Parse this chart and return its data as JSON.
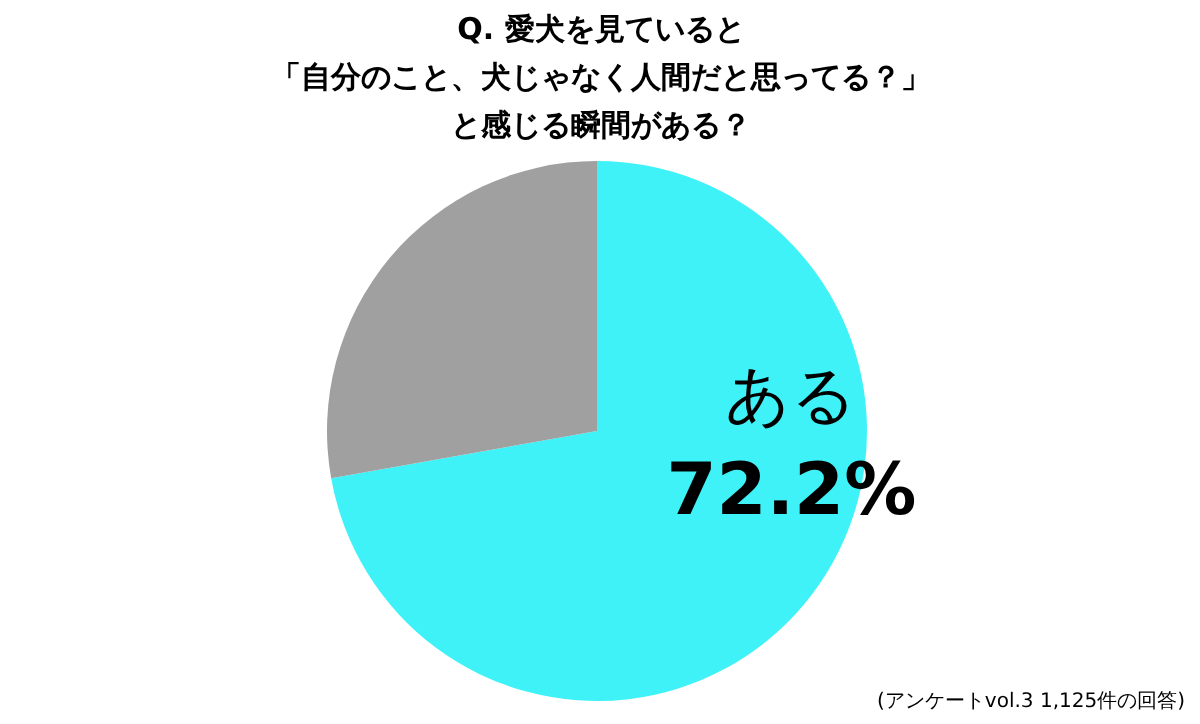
{
  "chart_data": {
    "type": "pie",
    "title": "Q. 愛犬を見ていると",
    "subtitle": "「自分のこと、犬じゃなく人間だと思ってる？」と感じる瞬間がある？",
    "categories": [
      "ある",
      null
    ],
    "values": [
      72.2,
      27.8
    ],
    "colors": [
      "#3ef2f8",
      "#a0a0a0"
    ],
    "value_labels": [
      "72.2%",
      null
    ],
    "annotations": [
      "(アンケートvol.3 1,125件の回答)"
    ]
  }
}
